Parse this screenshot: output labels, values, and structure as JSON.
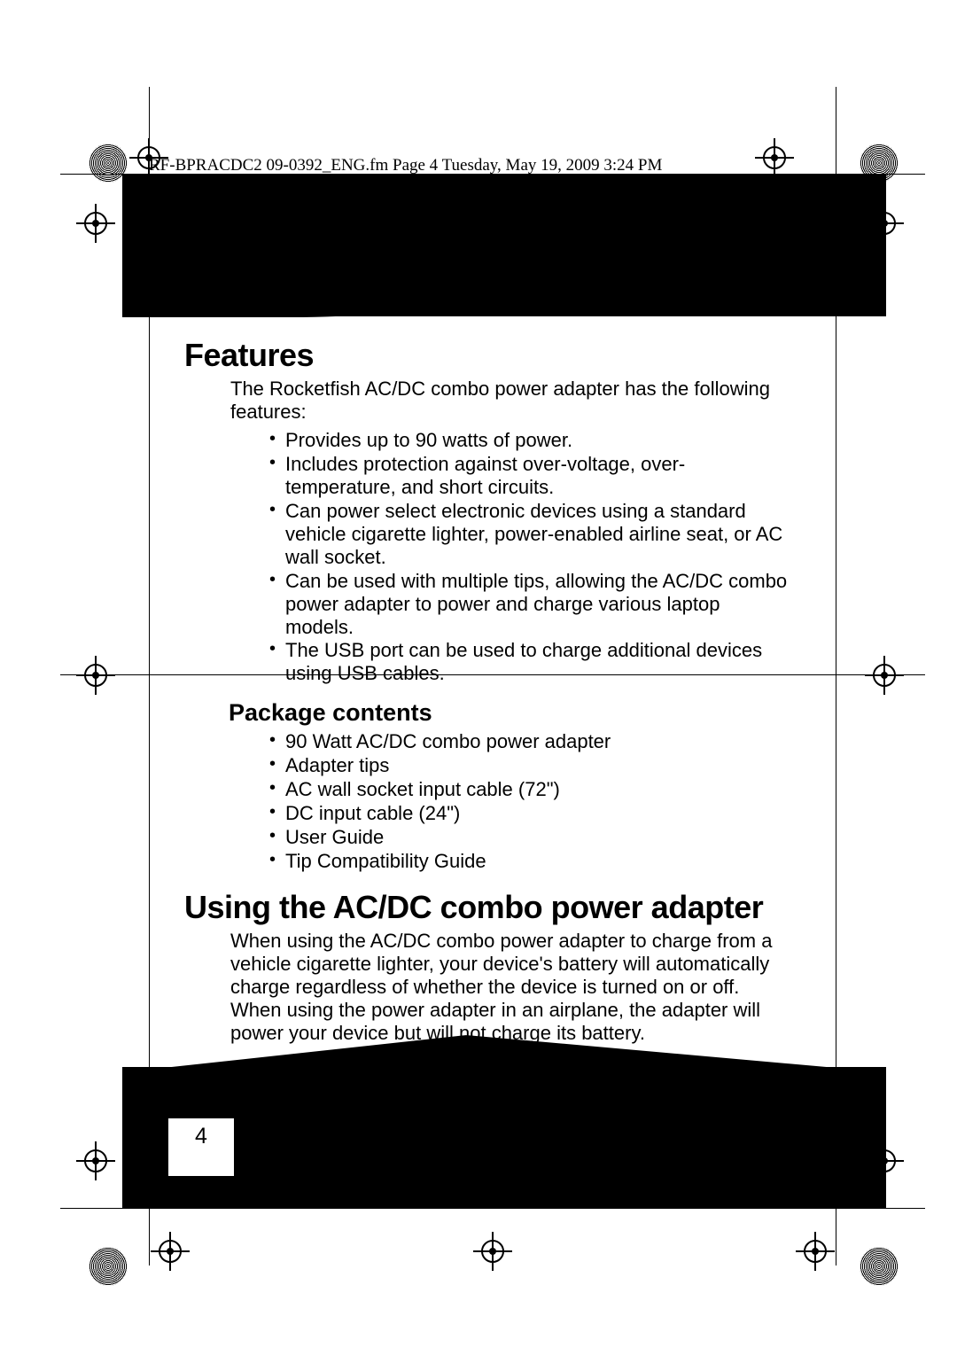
{
  "file_stamp": "RF-BPRACDC2 09-0392_ENG.fm  Page 4  Tuesday, May 19, 2009  3:24 PM",
  "page_number": "4",
  "sections": {
    "features": {
      "title": "Features",
      "intro": "The Rocketfish AC/DC combo power adapter has the following features:",
      "bullets": [
        "Provides up to 90 watts of power.",
        "Includes protection against over-voltage, over-temperature, and short circuits.",
        "Can power select electronic devices using a standard vehicle cigarette lighter, power-enabled airline seat, or AC wall socket.",
        "Can be used with multiple tips, allowing the AC/DC combo power adapter to power and charge various laptop models.",
        "The USB port can be used to charge additional devices using USB cables."
      ]
    },
    "package": {
      "title": "Package contents",
      "bullets": [
        "90 Watt AC/DC combo power adapter",
        "Adapter tips",
        "AC wall socket input cable (72\")",
        "DC input cable (24\")",
        "User Guide",
        "Tip Compatibility Guide"
      ]
    },
    "using": {
      "title": "Using the AC/DC combo power adapter",
      "para": "When using the AC/DC combo power adapter to charge from a vehicle cigarette lighter, your device's battery will automatically charge regardless of whether the device is turned on or off. When using the power adapter in an airplane, the adapter will power your device but will not charge its battery."
    }
  },
  "colors": {
    "text": "#000000",
    "background": "#ffffff",
    "band": "#000000"
  },
  "typography": {
    "body_fontsize_pt": 16,
    "h1_fontsize_pt": 27,
    "h2_fontsize_pt": 20
  }
}
